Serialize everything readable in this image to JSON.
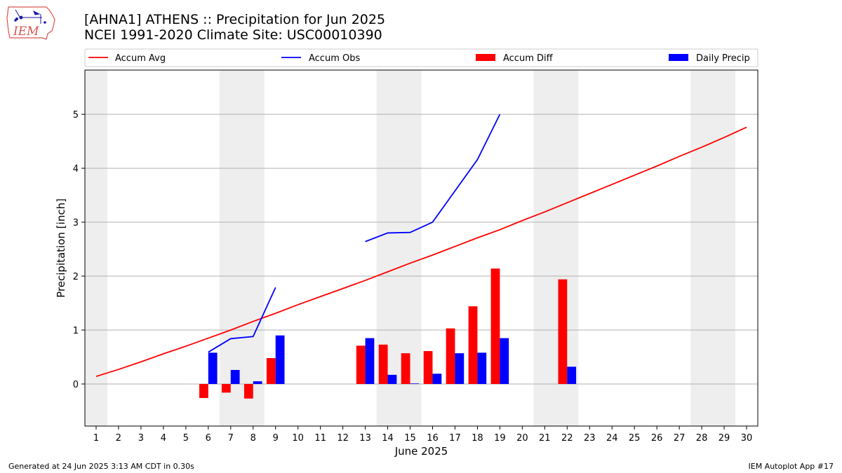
{
  "header": {
    "logo_text": "IEM",
    "title_line1": "[AHNA1] ATHENS :: Precipitation for Jun 2025",
    "title_line2": "NCEI 1991-2020 Climate Site: USC00010390"
  },
  "footer": {
    "left": "Generated at 24 Jun 2025 3:13 AM CDT in 0.30s",
    "right": "IEM Autoplot App #17"
  },
  "colors": {
    "accum_avg": "#ff0000",
    "accum_obs": "#0000ff",
    "accum_diff": "#ff0000",
    "daily_precip": "#0000ff",
    "weekend_shade": "#eeeeee",
    "grid": "#b0b0b0"
  },
  "chart_data": {
    "type": "bar",
    "xlabel": "June 2025",
    "ylabel": "Precipitation [inch]",
    "xlim": [
      0.5,
      30.5
    ],
    "ylim": [
      -0.78,
      5.82
    ],
    "xticks": [
      1,
      2,
      3,
      4,
      5,
      6,
      7,
      8,
      9,
      10,
      11,
      12,
      13,
      14,
      15,
      16,
      17,
      18,
      19,
      20,
      21,
      22,
      23,
      24,
      25,
      26,
      27,
      28,
      29,
      30
    ],
    "yticks": [
      0,
      1,
      2,
      3,
      4,
      5
    ],
    "grid": "horizontal",
    "legend": {
      "placement": "top",
      "entries": [
        {
          "label": "Accum Avg",
          "kind": "line",
          "color": "#ff0000"
        },
        {
          "label": "Accum Obs",
          "kind": "line",
          "color": "#0000ff"
        },
        {
          "label": "Accum Diff",
          "kind": "bar",
          "color": "#ff0000"
        },
        {
          "label": "Daily Precip",
          "kind": "bar",
          "color": "#0000ff"
        }
      ]
    },
    "weekend_spans": [
      [
        0.5,
        1.5
      ],
      [
        6.5,
        8.5
      ],
      [
        13.5,
        15.5
      ],
      [
        20.5,
        22.5
      ],
      [
        27.5,
        29.5
      ]
    ],
    "series": [
      {
        "name": "Accum Avg",
        "kind": "line",
        "x": [
          1,
          2,
          3,
          4,
          5,
          6,
          7,
          8,
          9,
          10,
          11,
          12,
          13,
          14,
          15,
          16,
          17,
          18,
          19,
          20,
          21,
          22,
          23,
          24,
          25,
          26,
          27,
          28,
          29,
          30
        ],
        "values": [
          0.14,
          0.27,
          0.41,
          0.56,
          0.7,
          0.85,
          1.0,
          1.16,
          1.31,
          1.47,
          1.62,
          1.77,
          1.92,
          2.08,
          2.24,
          2.39,
          2.55,
          2.71,
          2.86,
          3.03,
          3.19,
          3.36,
          3.53,
          3.7,
          3.87,
          4.04,
          4.22,
          4.39,
          4.57,
          4.76
        ]
      },
      {
        "name": "Accum Obs",
        "kind": "line",
        "x": [
          6,
          7,
          8,
          9,
          10,
          11,
          12,
          13,
          14,
          15,
          16,
          17,
          18,
          19
        ],
        "values": [
          0.59,
          0.84,
          0.88,
          1.79,
          null,
          null,
          null,
          2.64,
          2.8,
          2.81,
          3.0,
          3.58,
          4.16,
          5.0
        ]
      },
      {
        "name": "Accum Diff",
        "kind": "bar",
        "x": [
          6,
          7,
          8,
          9,
          13,
          14,
          15,
          16,
          17,
          18,
          19,
          22
        ],
        "values": [
          -0.26,
          -0.16,
          -0.27,
          0.48,
          0.71,
          0.73,
          0.57,
          0.61,
          1.03,
          1.44,
          2.14,
          1.94
        ]
      },
      {
        "name": "Daily Precip",
        "kind": "bar",
        "x": [
          6,
          7,
          8,
          9,
          13,
          14,
          15,
          16,
          17,
          18,
          19,
          22
        ],
        "values": [
          0.58,
          0.26,
          0.05,
          0.9,
          0.85,
          0.17,
          0.01,
          0.19,
          0.57,
          0.58,
          0.85,
          0.32
        ]
      }
    ]
  }
}
